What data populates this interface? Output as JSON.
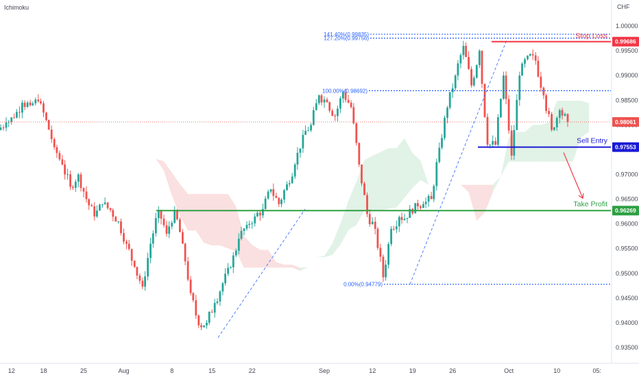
{
  "indicator_label": "Ichimoku",
  "currency_label": "CHF",
  "colors": {
    "up": "#26a69a",
    "down": "#ef5350",
    "fib": "#2962ff",
    "stop": "#f23645",
    "entry": "#1a1ad6",
    "profit": "#2ea043",
    "cloud_up": "#c9e8d2",
    "cloud_down": "#f6c7c7",
    "price_line": "#ef5350"
  },
  "annotations": {
    "stop_loss": {
      "label": "Stop Loss",
      "price": 0.99686,
      "tag": "0.99686"
    },
    "sell_entry": {
      "label": "Sell Entry",
      "price": 0.97553,
      "tag": "0.97553"
    },
    "take_profit": {
      "label": "Take Profit",
      "price": 0.96269,
      "tag": "0.96269"
    },
    "last_price": {
      "price": 0.98061,
      "tag": "0.98061"
    }
  },
  "fib_levels": [
    {
      "label": "127.20%(0.99756)",
      "value": 0.99756
    },
    {
      "label": "141.40%(0.99835)",
      "value": 0.99835
    },
    {
      "label": "100.00%(0.98692)",
      "value": 0.98692
    },
    {
      "label": "0.00%(0.94779)",
      "value": 0.94779
    }
  ],
  "chart_data": {
    "type": "candlestick",
    "title": "",
    "xlabel": "",
    "ylabel": "",
    "ylim": [
      0.9325,
      1.0025
    ],
    "y_ticks": [
      "1.00000",
      "0.99500",
      "0.99000",
      "0.98500",
      "0.98000",
      "0.97500",
      "0.97000",
      "0.96500",
      "0.96000",
      "0.95500",
      "0.95000",
      "0.94500",
      "0.94000",
      "0.93500"
    ],
    "x_ticks": [
      {
        "label": "12",
        "index": 1
      },
      {
        "label": "18",
        "index": 5
      },
      {
        "label": "25",
        "index": 10
      },
      {
        "label": "Aug",
        "index": 15
      },
      {
        "label": "8",
        "index": 21
      },
      {
        "label": "15",
        "index": 26
      },
      {
        "label": "22",
        "index": 31
      },
      {
        "label": "Sep",
        "index": 40
      },
      {
        "label": "12",
        "index": 46
      },
      {
        "label": "19",
        "index": 51
      },
      {
        "label": "26",
        "index": 56
      },
      {
        "label": "Oct",
        "index": 63
      },
      {
        "label": "10",
        "index": 69
      },
      {
        "label": "05:",
        "index": 74
      }
    ],
    "series": [
      {
        "name": "",
        "values": [
          0.9805,
          0.9815,
          0.9845,
          0.984,
          0.9848,
          0.981,
          0.9755,
          0.972,
          0.9675,
          0.97,
          0.965,
          0.9615,
          0.964,
          0.9628,
          0.9605,
          0.956,
          0.9513,
          0.9473,
          0.956,
          0.9628,
          0.958,
          0.9628,
          0.956,
          0.946,
          0.9395,
          0.94,
          0.944,
          0.948,
          0.9512,
          0.957,
          0.9598,
          0.9615,
          0.963,
          0.967,
          0.964,
          0.968,
          0.972,
          0.978,
          0.98,
          0.986,
          0.9846,
          0.9818,
          0.9866,
          0.9836,
          0.972,
          0.962,
          0.959,
          0.9492,
          0.959,
          0.9614,
          0.9612,
          0.9642,
          0.964,
          0.965,
          0.9754,
          0.9835,
          0.99,
          0.996,
          0.988,
          0.995,
          0.976,
          0.976,
          0.99,
          0.9738,
          0.99,
          0.994,
          0.993,
          0.986,
          0.979,
          0.983,
          0.9806
        ]
      }
    ]
  }
}
